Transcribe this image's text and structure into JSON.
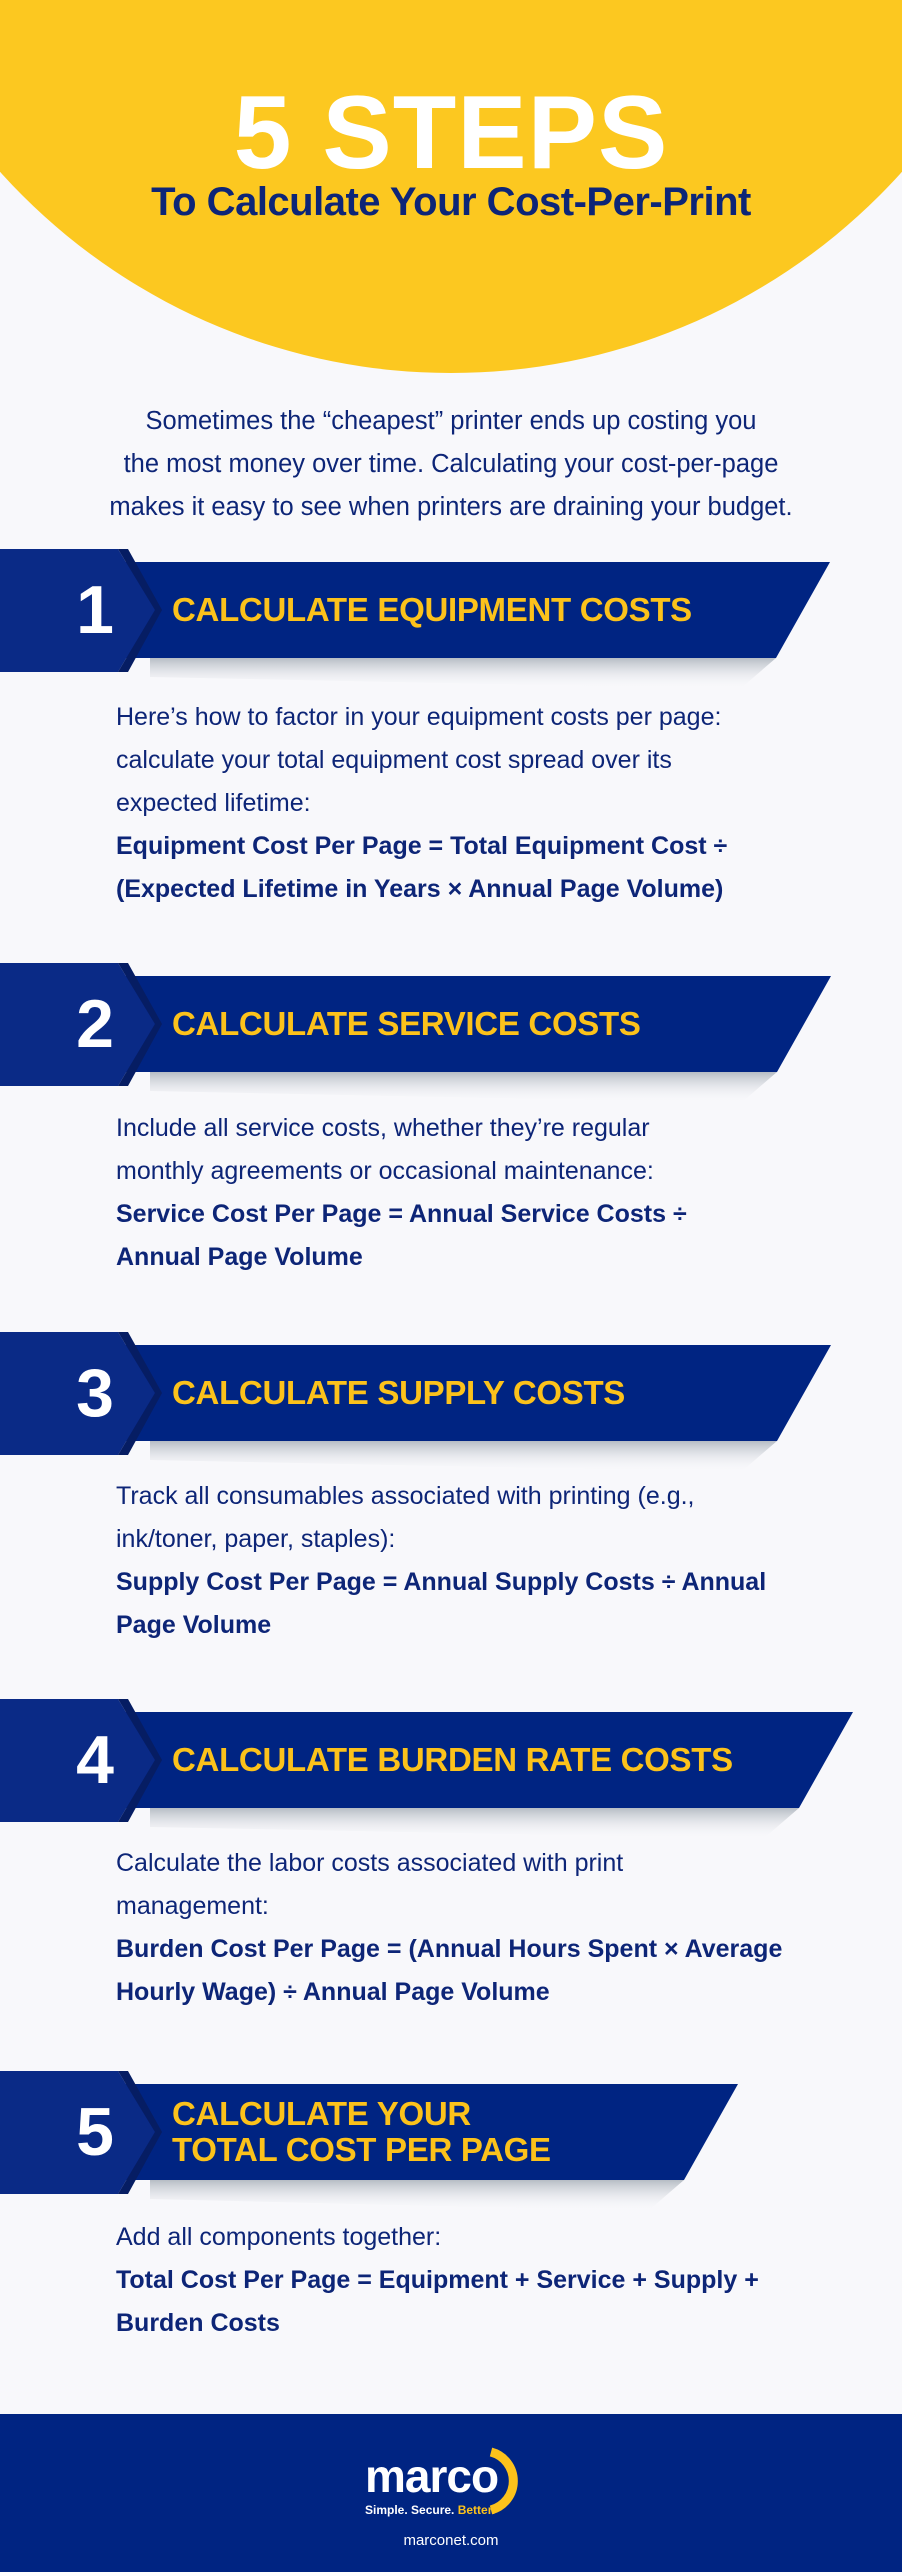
{
  "header": {
    "title": "5 STEPS",
    "subtitle": "To Calculate Your Cost-Per-Print"
  },
  "intro": {
    "lines": [
      "Sometimes the “cheapest” printer ends up costing you",
      "the most money over time. Calculating your cost-per-page",
      "makes it easy to see when printers are draining your budget."
    ]
  },
  "colors": {
    "yellow": "#fcc820",
    "navy": "#002482",
    "text": "#0d2577",
    "background": "#f8f8fb"
  },
  "steps": [
    {
      "number": "1",
      "title": [
        "CALCULATE EQUIPMENT COSTS"
      ],
      "text": [
        "Here’s how to factor in  your equipment costs per page:",
        "calculate your total equipment cost spread over its",
        "expected lifetime:"
      ],
      "formula": [
        "Equipment Cost Per Page = Total Equipment Cost ÷",
        "(Expected Lifetime in Years × Annual Page Volume)"
      ]
    },
    {
      "number": "2",
      "title": [
        "CALCULATE SERVICE COSTS"
      ],
      "text": [
        "Include all service costs, whether they’re regular",
        "monthly agreements or occasional maintenance:"
      ],
      "formula": [
        "Service Cost Per Page = Annual Service Costs ÷",
        "Annual Page Volume"
      ]
    },
    {
      "number": "3",
      "title": [
        "CALCULATE SUPPLY COSTS"
      ],
      "text": [
        "Track all consumables associated with printing (e.g.,",
        "ink/toner, paper, staples):"
      ],
      "formula": [
        "Supply Cost Per Page = Annual Supply Costs ÷ Annual",
        "Page Volume"
      ]
    },
    {
      "number": "4",
      "title": [
        "CALCULATE BURDEN RATE COSTS"
      ],
      "text": [
        "Calculate the labor costs associated with print",
        "management:"
      ],
      "formula": [
        "Burden Cost Per Page = (Annual Hours Spent × Average",
        "Hourly Wage) ÷ Annual Page Volume"
      ]
    },
    {
      "number": "5",
      "title": [
        "CALCULATE YOUR",
        "TOTAL COST PER PAGE"
      ],
      "text": [
        "Add all components together:"
      ],
      "formula": [
        "Total Cost Per Page = Equipment + Service + Supply +",
        "Burden Costs"
      ]
    }
  ],
  "footer": {
    "logo_word": "marco",
    "tagline": [
      "Simple. Secure. ",
      "Better."
    ],
    "url": "marconet.com"
  }
}
